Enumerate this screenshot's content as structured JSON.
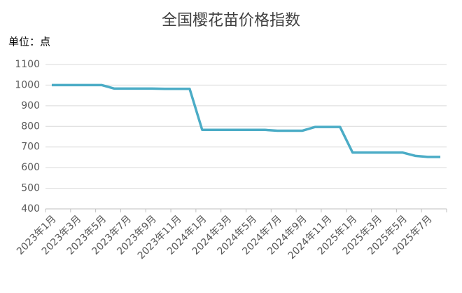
{
  "chart_data": {
    "type": "line",
    "title": "全国樱花苗价格指数",
    "unit_label": "单位：点",
    "categories": [
      "2023年1月",
      null,
      "2023年3月",
      null,
      "2023年5月",
      null,
      "2023年7月",
      null,
      "2023年9月",
      null,
      "2023年11月",
      null,
      "2024年1月",
      null,
      "2024年3月",
      null,
      "2024年5月",
      null,
      "2024年7月",
      null,
      "2024年9月",
      null,
      "2024年11月",
      null,
      "2025年1月",
      null,
      "2025年3月",
      null,
      "2025年5月",
      null,
      "2025年7月",
      null
    ],
    "series": [
      {
        "name": "全国樱花苗价格指数",
        "color": "#4bacc6",
        "values": [
          1000,
          1000,
          1000,
          1000,
          1000,
          983,
          983,
          983,
          983,
          982,
          982,
          982,
          783,
          783,
          783,
          783,
          783,
          783,
          779,
          779,
          779,
          797,
          797,
          797,
          673,
          673,
          673,
          673,
          673,
          657,
          652,
          652
        ]
      }
    ],
    "ylim": [
      400,
      1100
    ],
    "yticks": [
      400,
      500,
      600,
      700,
      800,
      900,
      1000,
      1100
    ],
    "grid": true
  }
}
